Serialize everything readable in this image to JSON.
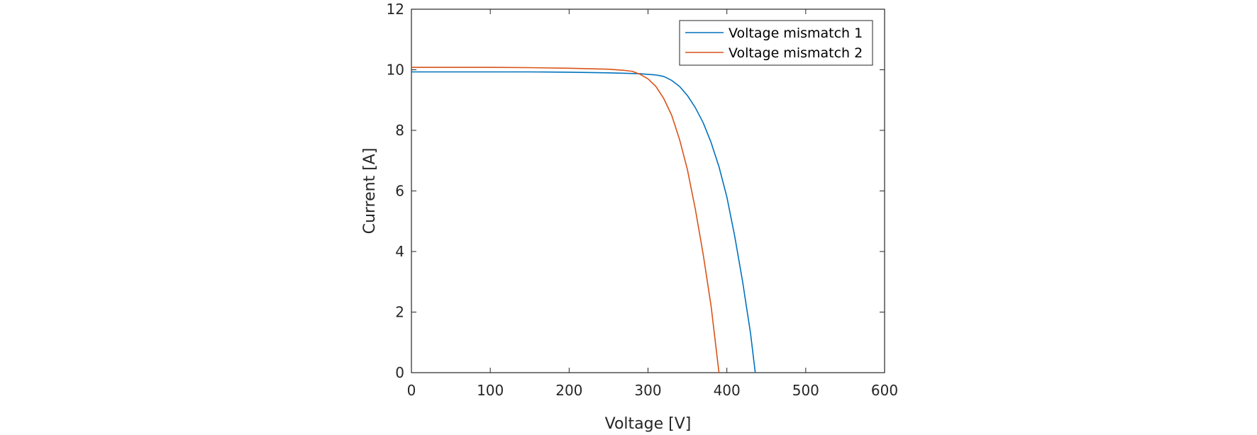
{
  "chart_data": {
    "type": "line",
    "title": "",
    "xlabel": "Voltage [V]",
    "ylabel": "Current [A]",
    "xlim": [
      0,
      600
    ],
    "ylim": [
      0,
      12
    ],
    "xticks": [
      0,
      100,
      200,
      300,
      400,
      500,
      600
    ],
    "yticks": [
      0,
      2,
      4,
      6,
      8,
      10,
      12
    ],
    "xtick_labels": [
      "0",
      "100",
      "200",
      "300",
      "400",
      "500",
      "600"
    ],
    "ytick_labels": [
      "0",
      "2",
      "4",
      "6",
      "8",
      "10",
      "12"
    ],
    "grid": false,
    "legend_position": "top-right",
    "series": [
      {
        "name": "Voltage mismatch 1",
        "color": "#0072BD",
        "x": [
          0,
          50,
          100,
          150,
          200,
          250,
          290,
          310,
          320,
          330,
          340,
          350,
          360,
          370,
          380,
          390,
          400,
          410,
          420,
          430,
          436
        ],
        "y": [
          9.93,
          9.93,
          9.93,
          9.93,
          9.92,
          9.9,
          9.87,
          9.83,
          9.78,
          9.65,
          9.45,
          9.15,
          8.75,
          8.25,
          7.6,
          6.8,
          5.8,
          4.5,
          3.0,
          1.3,
          0
        ]
      },
      {
        "name": "Voltage mismatch 2",
        "color": "#D95319",
        "x": [
          0,
          50,
          100,
          150,
          200,
          250,
          270,
          280,
          290,
          300,
          310,
          320,
          330,
          340,
          350,
          360,
          370,
          380,
          385,
          390
        ],
        "y": [
          10.08,
          10.08,
          10.08,
          10.07,
          10.05,
          10.02,
          9.98,
          9.95,
          9.85,
          9.7,
          9.45,
          9.05,
          8.5,
          7.7,
          6.7,
          5.4,
          3.9,
          2.2,
          1.1,
          0
        ]
      }
    ]
  }
}
